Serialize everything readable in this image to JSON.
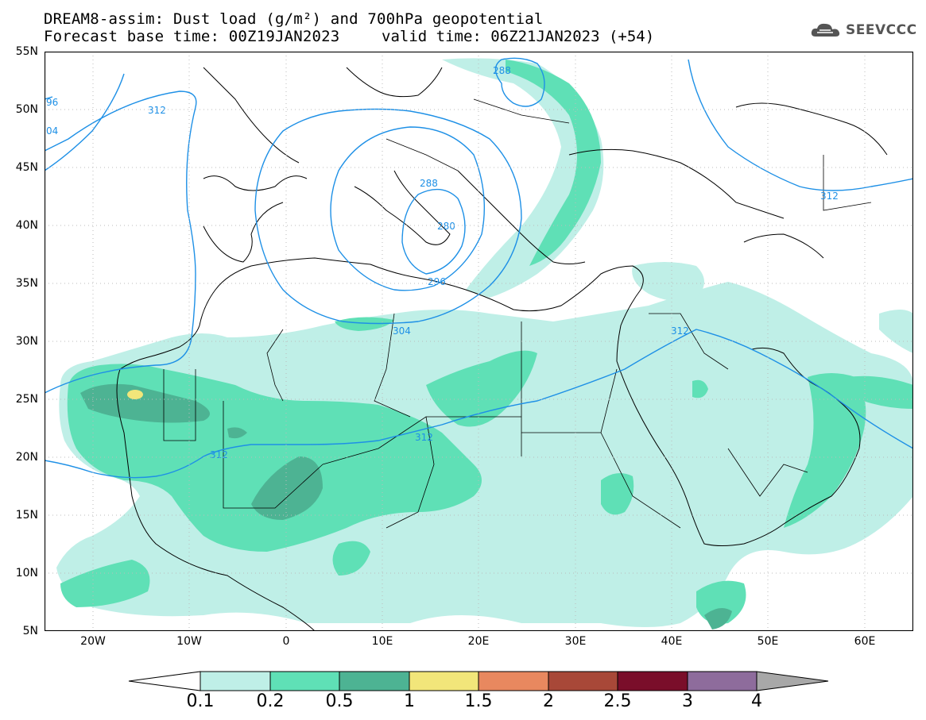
{
  "header": {
    "title": "DREAM8-assim: Dust load (g/m²) and 700hPa geopotential",
    "base_time": "Forecast base time: 00Z19JAN2023",
    "valid_time": "valid time: 06Z21JAN2023 (+54)"
  },
  "logo": {
    "text": "SEEVCCC",
    "icon": "cloud-icon"
  },
  "map": {
    "lat_labels": [
      "55N",
      "50N",
      "45N",
      "40N",
      "35N",
      "30N",
      "25N",
      "20N",
      "15N",
      "10N",
      "5N"
    ],
    "lon_labels": [
      "20W",
      "10W",
      "0",
      "10E",
      "20E",
      "30E",
      "40E",
      "50E",
      "60E"
    ],
    "contour_labels": [
      "96",
      "04",
      "312",
      "288",
      "288",
      "280",
      "296",
      "304",
      "312",
      "312",
      "312",
      "312"
    ],
    "colors": {
      "contour": "#1e90e6",
      "border": "#000000"
    }
  },
  "colorbar": {
    "labels": [
      "0.1",
      "0.2",
      "0.5",
      "1",
      "1.5",
      "2",
      "2.5",
      "3",
      "4"
    ],
    "colors": [
      "#ffffff",
      "#bfefe7",
      "#5fe0b6",
      "#4db393",
      "#f2e67a",
      "#e8885f",
      "#a84838",
      "#7a0e2a",
      "#8e6c9c",
      "#a8a8a8"
    ]
  }
}
